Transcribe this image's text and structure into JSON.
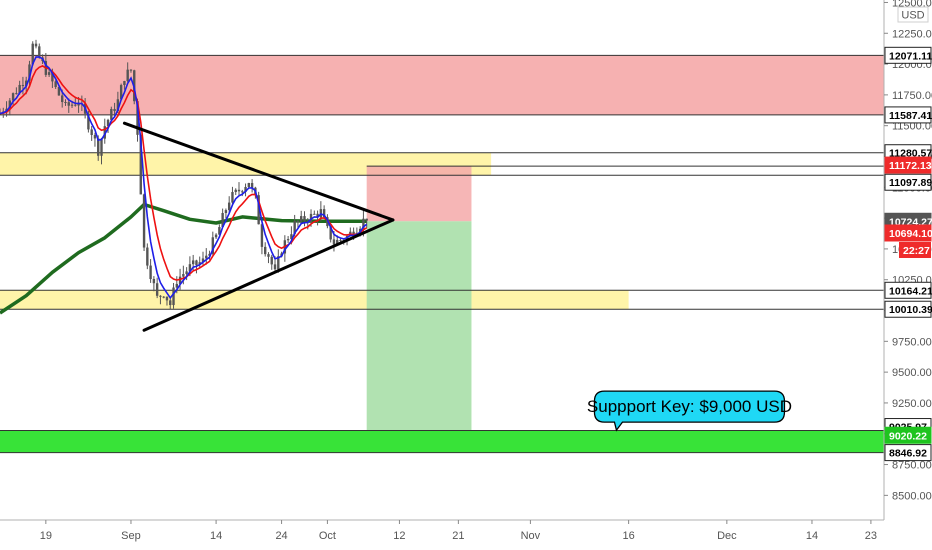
{
  "chart_data": {
    "type": "candlestick",
    "currency": "USD",
    "y_axis": {
      "min": 8300,
      "max": 12520,
      "ticks": [
        8500,
        8750,
        9000,
        9250,
        9500,
        9750,
        10000,
        10250,
        10500,
        10750,
        11000,
        11250,
        11500,
        11750,
        12000,
        12250,
        12500
      ],
      "tick_labels": [
        "8500.00",
        "8750.00",
        "9000.00",
        "9250.00",
        "9500.00",
        "9750.00",
        "10000.00",
        "10250.00",
        "10500.00",
        "10750.00",
        "11000.00",
        "11250.00",
        "11500.00",
        "11750.00",
        "12000.00",
        "12250.00",
        "12500.00"
      ]
    },
    "x_axis": {
      "start": "2020-08-12",
      "end": "2020-12-25",
      "ticks": [
        {
          "date": "2020-08-19",
          "label": "19"
        },
        {
          "date": "2020-09-01",
          "label": "Sep"
        },
        {
          "date": "2020-09-14",
          "label": "14"
        },
        {
          "date": "2020-09-24",
          "label": "24"
        },
        {
          "date": "2020-10-01",
          "label": "Oct"
        },
        {
          "date": "2020-10-12",
          "label": "12"
        },
        {
          "date": "2020-10-21",
          "label": "21"
        },
        {
          "date": "2020-11-01",
          "label": "Nov"
        },
        {
          "date": "2020-11-16",
          "label": "16"
        },
        {
          "date": "2020-12-01",
          "label": "Dec"
        },
        {
          "date": "2020-12-14",
          "label": "14"
        },
        {
          "date": "2020-12-23",
          "label": "23"
        }
      ]
    },
    "price_path": [
      [
        "2020-08-12",
        11600
      ],
      [
        "2020-08-14",
        11750
      ],
      [
        "2020-08-16",
        11900
      ],
      [
        "2020-08-17",
        12150
      ],
      [
        "2020-08-18",
        12050
      ],
      [
        "2020-08-20",
        11850
      ],
      [
        "2020-08-22",
        11650
      ],
      [
        "2020-08-24",
        11700
      ],
      [
        "2020-08-26",
        11450
      ],
      [
        "2020-08-27",
        11300
      ],
      [
        "2020-08-28",
        11500
      ],
      [
        "2020-08-30",
        11700
      ],
      [
        "2020-08-31",
        11900
      ],
      [
        "2020-09-01",
        11950
      ],
      [
        "2020-09-02",
        11450
      ],
      [
        "2020-09-03",
        10500
      ],
      [
        "2020-09-04",
        10300
      ],
      [
        "2020-09-05",
        10100
      ],
      [
        "2020-09-06",
        10150
      ],
      [
        "2020-09-07",
        10050
      ],
      [
        "2020-09-08",
        10250
      ],
      [
        "2020-09-10",
        10350
      ],
      [
        "2020-09-12",
        10400
      ],
      [
        "2020-09-14",
        10600
      ],
      [
        "2020-09-16",
        10900
      ],
      [
        "2020-09-18",
        11000
      ],
      [
        "2020-09-19",
        11050
      ],
      [
        "2020-09-20",
        10900
      ],
      [
        "2020-09-21",
        10550
      ],
      [
        "2020-09-22",
        10450
      ],
      [
        "2020-09-23",
        10300
      ],
      [
        "2020-09-24",
        10500
      ],
      [
        "2020-09-26",
        10700
      ],
      [
        "2020-09-28",
        10750
      ],
      [
        "2020-09-30",
        10800
      ],
      [
        "2020-10-01",
        10650
      ],
      [
        "2020-10-02",
        10550
      ],
      [
        "2020-10-04",
        10600
      ],
      [
        "2020-10-06",
        10700
      ],
      [
        "2020-10-07",
        10760
      ]
    ],
    "zones": [
      {
        "name": "resistance-zone",
        "from": 11587.41,
        "to": 12071.11,
        "color": "#f5a9a9"
      },
      {
        "name": "upper-support-zone",
        "from": 11097.89,
        "to": 11280.57,
        "color": "#fff3a0"
      },
      {
        "name": "lower-support-zone",
        "from": 10010.39,
        "to": 10164.21,
        "color": "#fff3a0"
      },
      {
        "name": "key-support-zone",
        "from": 8846.92,
        "to": 9025.97,
        "color": "#22e022"
      }
    ],
    "position": {
      "start": "2020-10-07",
      "end": "2020-10-23",
      "entry": 10724.27,
      "stop": 11172.13,
      "target": 9025.97,
      "stop_color": "#f5a9a9",
      "target_color": "#a9dfa9"
    },
    "triangle": [
      {
        "from": [
          "2020-08-31",
          11520
        ],
        "to": [
          "2020-10-11",
          10735
        ]
      },
      {
        "from": [
          "2020-09-03",
          9840
        ],
        "to": [
          "2020-10-11",
          10735
        ]
      }
    ],
    "price_levels": [
      {
        "value": 12071.11,
        "label": "12071.11",
        "bg": "#ffffff",
        "fg": "#000000"
      },
      {
        "value": 11587.41,
        "label": "11587.41",
        "bg": "#ffffff",
        "fg": "#000000"
      },
      {
        "value": 11280.57,
        "label": "11280.57",
        "bg": "#ffffff",
        "fg": "#000000"
      },
      {
        "value": 11172.13,
        "label": "11172.13",
        "bg": "#ef2b2b",
        "fg": "#ffffff"
      },
      {
        "value": 11097.89,
        "label": "11097.89",
        "bg": "#ffffff",
        "fg": "#000000"
      },
      {
        "value": 10724.27,
        "label": "10724.27",
        "bg": "#555555",
        "fg": "#ffffff"
      },
      {
        "value": 10694.1,
        "label": "10694.10",
        "bg": "#ef2b2b",
        "fg": "#ffffff"
      },
      {
        "value": 10164.21,
        "label": "10164.21",
        "bg": "#ffffff",
        "fg": "#000000"
      },
      {
        "value": 10010.39,
        "label": "10010.39",
        "bg": "#ffffff",
        "fg": "#000000"
      },
      {
        "value": 9025.97,
        "label": "9025.97",
        "bg": "#ffffff",
        "fg": "#000000"
      },
      {
        "value": 9020.22,
        "label": "9020.22",
        "bg": "#1fc41f",
        "fg": "#ffffff"
      },
      {
        "value": 8846.92,
        "label": "8846.92",
        "bg": "#ffffff",
        "fg": "#000000"
      }
    ],
    "countdown": "22:27",
    "annotation": {
      "text": "Suppport Key: $9,000 USD",
      "date": "2020-11-23",
      "value": 9220
    },
    "colors": {
      "ma_long": "#1f6b1f",
      "ma_fast": "#1e1ee8",
      "ma_slow": "#ee1111",
      "candle": "#555555"
    }
  }
}
